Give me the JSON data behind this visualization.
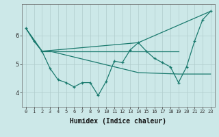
{
  "xlabel": "Humidex (Indice chaleur)",
  "bg_color": "#cce8e8",
  "line_color": "#1a7a6e",
  "grid_color": "#b8d8d8",
  "series1_x": [
    0,
    1,
    2,
    3,
    4,
    5,
    6,
    7,
    8,
    9,
    10,
    11,
    12,
    13,
    14,
    15,
    16,
    17,
    18,
    19,
    20,
    21,
    22,
    23
  ],
  "series1_y": [
    6.25,
    5.8,
    5.45,
    4.85,
    4.45,
    4.35,
    4.2,
    4.35,
    4.35,
    3.9,
    4.4,
    5.1,
    5.05,
    5.5,
    5.75,
    5.45,
    5.2,
    5.05,
    4.9,
    4.35,
    4.9,
    5.8,
    6.55,
    6.85
  ],
  "series2_x": [
    0,
    2,
    14,
    23
  ],
  "series2_y": [
    6.25,
    5.45,
    5.75,
    6.85
  ],
  "series3_x": [
    0,
    2,
    3,
    14,
    19,
    21,
    23
  ],
  "series3_y": [
    6.25,
    5.45,
    5.45,
    4.7,
    4.65,
    4.65,
    4.65
  ],
  "series4_x": [
    2,
    19
  ],
  "series4_y": [
    5.45,
    5.45
  ],
  "ylim": [
    3.5,
    7.1
  ],
  "xlim": [
    -0.5,
    23.5
  ],
  "yticks": [
    4,
    5,
    6
  ],
  "xticks": [
    0,
    1,
    2,
    3,
    4,
    5,
    6,
    7,
    8,
    9,
    10,
    11,
    12,
    13,
    14,
    15,
    16,
    17,
    18,
    19,
    20,
    21,
    22,
    23
  ]
}
